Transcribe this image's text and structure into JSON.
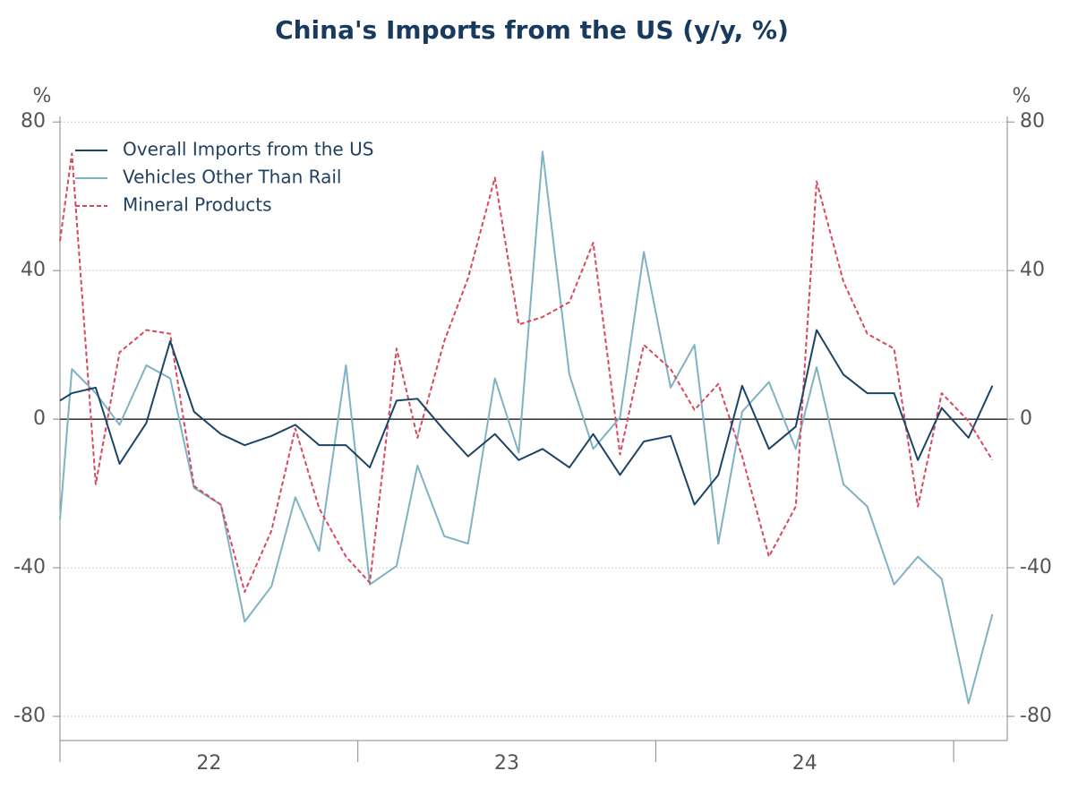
{
  "chart_data": {
    "type": "line",
    "title": "China's Imports from the US (y/y, %)",
    "ylabel": "%",
    "y2label": "%",
    "x": [
      22.0,
      22.04,
      22.12,
      22.2,
      22.29,
      22.37,
      22.45,
      22.54,
      22.62,
      22.71,
      22.79,
      22.87,
      22.96,
      23.04,
      23.13,
      23.2,
      23.29,
      23.37,
      23.46,
      23.54,
      23.62,
      23.71,
      23.79,
      23.88,
      23.96,
      24.05,
      24.13,
      24.21,
      24.29,
      24.38,
      24.47,
      24.54,
      24.63,
      24.71,
      24.8,
      24.88,
      24.96,
      25.05,
      25.13
    ],
    "series": [
      {
        "name": "Overall Imports from the US",
        "color": "#1c4466",
        "dash": false,
        "values": [
          5,
          7,
          8.5,
          -12,
          -1,
          21,
          2,
          -4,
          -7,
          -4.5,
          -1.5,
          -7,
          -7,
          -13,
          5,
          5.5,
          -3,
          -10,
          -4,
          -11,
          -8,
          -13,
          -4,
          -15,
          -6,
          -4.5,
          -23,
          -15,
          9,
          -8,
          -2,
          24,
          12,
          7,
          7,
          -11,
          3,
          -5,
          9
        ]
      },
      {
        "name": "Vehicles Other Than Rail",
        "color": "#7fb2c2",
        "dash": false,
        "values": [
          -27,
          13.5,
          7,
          -1.5,
          14.5,
          11,
          -18.5,
          -23,
          -54.5,
          -45,
          -21,
          -35.5,
          14.5,
          -44.5,
          -39.5,
          -12.5,
          -31.5,
          -33.5,
          11,
          -9,
          72,
          12,
          -8,
          0.5,
          45,
          8.5,
          20,
          -33.5,
          2,
          10,
          -8,
          14,
          -17.5,
          -23.5,
          -44.5,
          -37,
          -43,
          -76.5,
          -52.5
        ]
      },
      {
        "name": "Mineral Products",
        "color": "#d9475d",
        "dash": true,
        "values": [
          48,
          71.5,
          -17.5,
          18,
          24,
          23,
          -18,
          -23,
          -46.5,
          -30,
          -2.5,
          -24,
          -37,
          -44,
          19,
          -5,
          21,
          38,
          65,
          25.5,
          27.5,
          31.5,
          47.5,
          -9.5,
          20,
          13.5,
          2.5,
          9.5,
          -10,
          -37,
          -23.5,
          64,
          37,
          23,
          19,
          -23.5,
          7,
          -0.5,
          -11
        ]
      }
    ],
    "xlim": [
      22,
      25.18
    ],
    "xticks": [
      {
        "value": 22.5,
        "label": "22"
      },
      {
        "value": 23.5,
        "label": "23"
      },
      {
        "value": 24.5,
        "label": "24"
      }
    ],
    "xtick_marks": [
      22,
      23,
      24,
      25
    ],
    "ylim": [
      -86.5,
      81.5
    ],
    "yticks": [
      80,
      40,
      0,
      -40,
      -80
    ],
    "y2lim": [
      -86.5,
      81.5
    ],
    "y2ticks": [
      80,
      40,
      0,
      -40,
      -80
    ],
    "grid": true,
    "legend": "upper-left"
  }
}
